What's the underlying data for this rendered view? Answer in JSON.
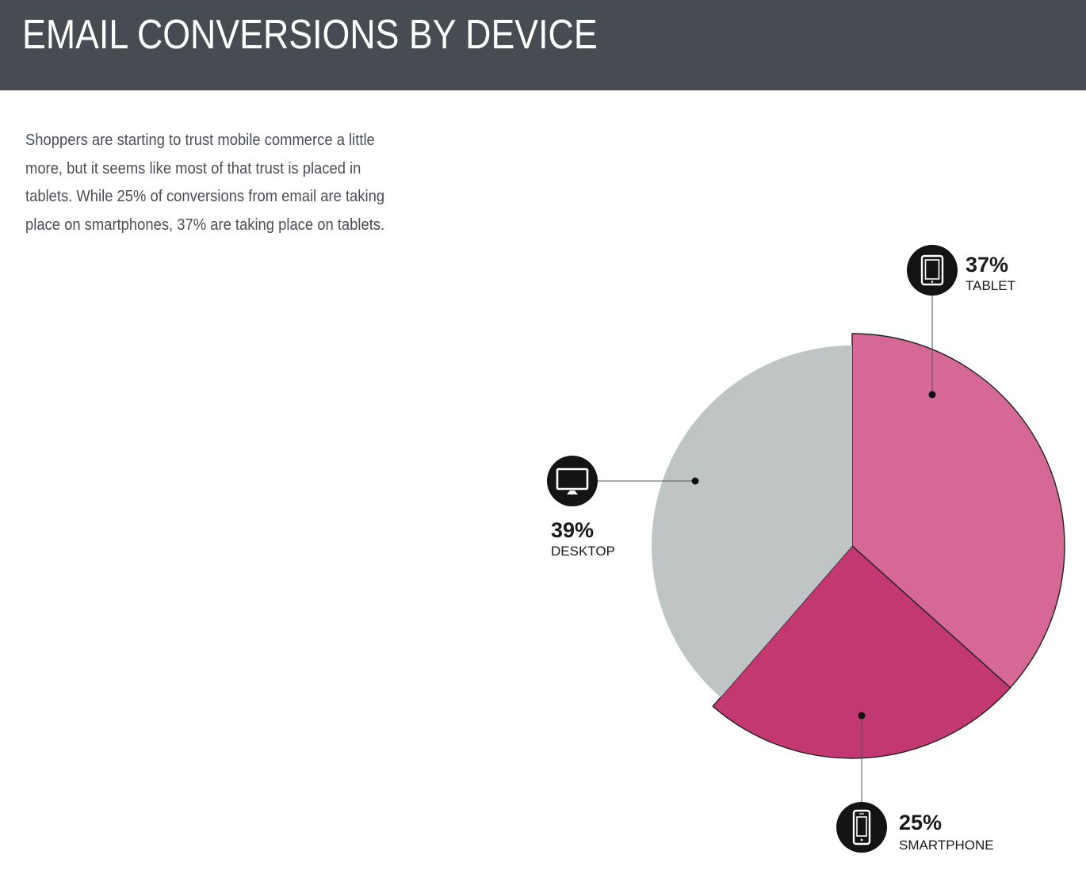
{
  "header": {
    "title": "EMAIL CONVERSIONS BY DEVICE"
  },
  "intro": {
    "text": "Shoppers are starting to trust mobile commerce a little more, but it seems like most of that trust is placed in tablets. While 25% of conversions from email are taking place on smartphones, 37% are taking place on tablets."
  },
  "colors": {
    "header_bg": "#474c53",
    "tablet": "#d66895",
    "smartphone": "#c43872",
    "desktop": "#bfc4c4",
    "icon_bg": "#141414"
  },
  "chart_data": {
    "type": "pie",
    "title": "EMAIL CONVERSIONS BY DEVICE",
    "slices": [
      {
        "name": "TABLET",
        "value": 37,
        "label": "37%",
        "color": "#d66895",
        "icon": "tablet-icon",
        "exploded": true
      },
      {
        "name": "SMARTPHONE",
        "value": 25,
        "label": "25%",
        "color": "#c43872",
        "icon": "smartphone-icon",
        "exploded": true
      },
      {
        "name": "DESKTOP",
        "value": 39,
        "label": "39%",
        "color": "#bfc4c4",
        "icon": "desktop-icon",
        "exploded": false
      }
    ]
  }
}
